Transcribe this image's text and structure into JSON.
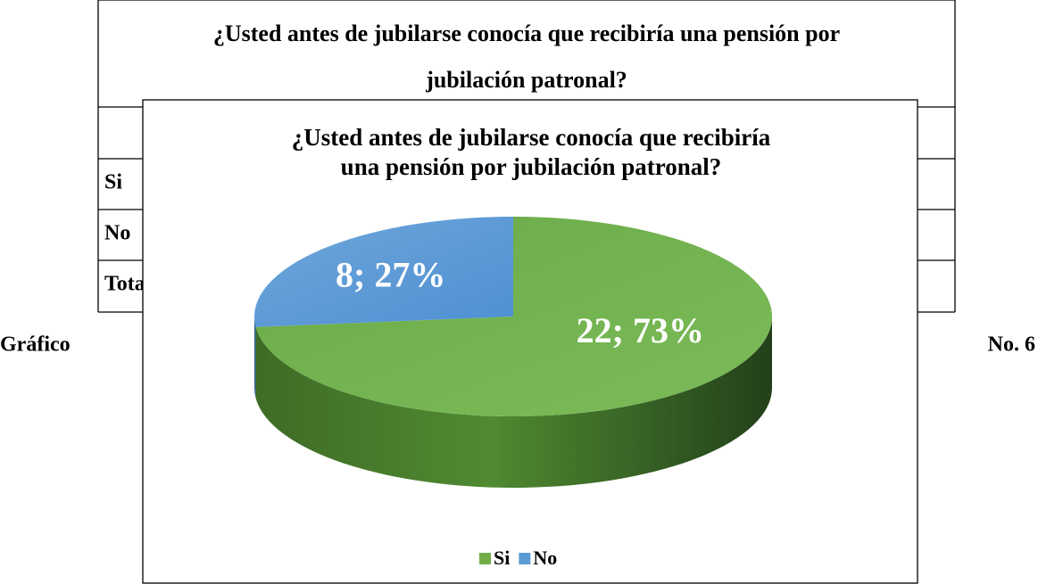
{
  "document": {
    "table_title": [
      "¿Usted antes de jubilarse conocía que recibiría una pensión por",
      "jubilación patronal?"
    ],
    "rows": [
      "Si",
      "No",
      "Total"
    ],
    "caption": [
      "Gráfico",
      "No. 6"
    ]
  },
  "chart_data": {
    "type": "pie",
    "title": [
      "¿Usted antes de jubilarse conocía que recibiría",
      "una pensión por jubilación patronal?"
    ],
    "categories": [
      "Si",
      "No"
    ],
    "values": [
      22,
      8
    ],
    "value_labels": [
      "22; 73%",
      "8; 27%"
    ],
    "colors": [
      "#70ad47",
      "#5b9bd5"
    ],
    "legend": "bottom"
  }
}
